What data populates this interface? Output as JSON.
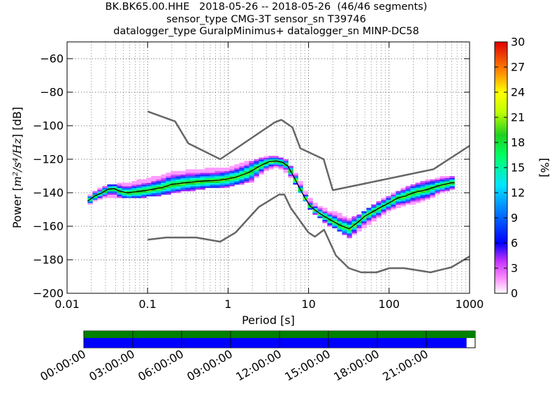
{
  "title_lines": [
    "BK.BK65.00.HHE   2018-05-26 -- 2018-05-26  (46/46 segments)",
    "sensor_type CMG-3T sensor_sn T39746",
    "datalogger_type GuralpMinimus+ datalogger_sn MINP-DC58"
  ],
  "chart_data": {
    "type": "heatmap",
    "xlabel": "Period [s]",
    "ylabel_prefix": "Power [",
    "ylabel_unit": "m²/s⁴/Hz",
    "ylabel_suffix": "] [dB]",
    "x_scale": "log",
    "xlim": [
      0.01,
      1000
    ],
    "ylim": [
      -200,
      -50
    ],
    "x_ticks": [
      0.01,
      0.1,
      1,
      10,
      100,
      1000
    ],
    "x_tick_labels": [
      "0.01",
      "0.1",
      "1",
      "10",
      "100",
      "1000"
    ],
    "y_ticks": [
      -200,
      -180,
      -160,
      -140,
      -120,
      -100,
      -80,
      -60
    ],
    "y_tick_labels": [
      "−200",
      "−180",
      "−160",
      "−140",
      "−120",
      "−100",
      "−80",
      "−60"
    ],
    "grid": true,
    "colorbar": {
      "label": "[%]",
      "range": [
        0,
        30
      ],
      "ticks": [
        0,
        3,
        6,
        9,
        12,
        15,
        18,
        21,
        24,
        27,
        30
      ],
      "tick_labels": [
        "0",
        "3",
        "6",
        "9",
        "12",
        "15",
        "18",
        "21",
        "24",
        "27",
        "30"
      ],
      "colormap": "pqlx"
    },
    "noise_models": [
      {
        "name": "NHNM",
        "color": "#666666",
        "points": [
          [
            0.1,
            -91.5
          ],
          [
            0.22,
            -97.4
          ],
          [
            0.32,
            -110.5
          ],
          [
            0.8,
            -120
          ],
          [
            3.8,
            -98
          ],
          [
            4.6,
            -96.5
          ],
          [
            6.3,
            -101
          ],
          [
            7.9,
            -113.5
          ],
          [
            15.4,
            -120
          ],
          [
            20,
            -138.5
          ],
          [
            354.8,
            -126
          ],
          [
            1000,
            -112
          ]
        ]
      },
      {
        "name": "NLNM",
        "color": "#666666",
        "points": [
          [
            0.1,
            -168
          ],
          [
            0.17,
            -166.7
          ],
          [
            0.4,
            -166.7
          ],
          [
            0.8,
            -169.2
          ],
          [
            1.24,
            -163.7
          ],
          [
            2.4,
            -148.6
          ],
          [
            4.3,
            -141.1
          ],
          [
            5,
            -141.1
          ],
          [
            6,
            -149
          ],
          [
            10,
            -163.8
          ],
          [
            12,
            -166.2
          ],
          [
            15.6,
            -162.1
          ],
          [
            21.9,
            -177.5
          ],
          [
            31.6,
            -185
          ],
          [
            45,
            -187.5
          ],
          [
            70,
            -187.5
          ],
          [
            101,
            -185
          ],
          [
            154,
            -185
          ],
          [
            328,
            -187.5
          ],
          [
            600,
            -184.4
          ],
          [
            1000,
            -178
          ]
        ]
      }
    ],
    "psd_median": {
      "color": "#000000",
      "points": [
        [
          0.018,
          -145
        ],
        [
          0.022,
          -142
        ],
        [
          0.026,
          -140.5
        ],
        [
          0.032,
          -138
        ],
        [
          0.038,
          -137.5
        ],
        [
          0.045,
          -139
        ],
        [
          0.055,
          -140
        ],
        [
          0.07,
          -139.5
        ],
        [
          0.1,
          -138.5
        ],
        [
          0.15,
          -137
        ],
        [
          0.2,
          -135
        ],
        [
          0.3,
          -134
        ],
        [
          0.5,
          -133
        ],
        [
          0.8,
          -132.5
        ],
        [
          1.2,
          -131
        ],
        [
          1.8,
          -128
        ],
        [
          2.5,
          -124
        ],
        [
          3.2,
          -121.5
        ],
        [
          4,
          -121
        ],
        [
          4.8,
          -122
        ],
        [
          5.5,
          -124
        ],
        [
          6.5,
          -130
        ],
        [
          7.5,
          -136
        ],
        [
          9,
          -143
        ],
        [
          10.5,
          -148
        ],
        [
          12.5,
          -151
        ],
        [
          15,
          -153.5
        ],
        [
          20,
          -157
        ],
        [
          25,
          -159.5
        ],
        [
          32,
          -161.5
        ],
        [
          40,
          -158
        ],
        [
          50,
          -154
        ],
        [
          70,
          -150
        ],
        [
          100,
          -146
        ],
        [
          130,
          -143
        ],
        [
          160,
          -142
        ],
        [
          200,
          -140
        ],
        [
          300,
          -138
        ],
        [
          400,
          -136
        ],
        [
          600,
          -134
        ],
        [
          650,
          -134
        ]
      ]
    },
    "psd_spread": {
      "comment_free": true,
      "upper": [
        [
          0.018,
          -142
        ],
        [
          0.03,
          -136
        ],
        [
          0.06,
          -134
        ],
        [
          0.1,
          -132
        ],
        [
          0.2,
          -128
        ],
        [
          0.5,
          -126
        ],
        [
          1,
          -125
        ],
        [
          2,
          -121
        ],
        [
          3,
          -118.5
        ],
        [
          4,
          -118
        ],
        [
          5,
          -120
        ],
        [
          6.5,
          -126
        ],
        [
          8,
          -134
        ],
        [
          10,
          -143
        ],
        [
          13,
          -148
        ],
        [
          18,
          -151
        ],
        [
          25,
          -153
        ],
        [
          32,
          -156
        ],
        [
          45,
          -153
        ],
        [
          70,
          -146
        ],
        [
          100,
          -142
        ],
        [
          200,
          -135
        ],
        [
          300,
          -133
        ],
        [
          400,
          -131
        ],
        [
          600,
          -130
        ],
        [
          650,
          -130
        ]
      ],
      "lower": [
        [
          0.018,
          -147
        ],
        [
          0.03,
          -142
        ],
        [
          0.06,
          -143
        ],
        [
          0.1,
          -142
        ],
        [
          0.2,
          -140
        ],
        [
          0.5,
          -137
        ],
        [
          1,
          -136
        ],
        [
          2,
          -133
        ],
        [
          3,
          -126
        ],
        [
          4,
          -124
        ],
        [
          5,
          -126
        ],
        [
          6.5,
          -133
        ],
        [
          8,
          -140
        ],
        [
          10,
          -148
        ],
        [
          13,
          -154
        ],
        [
          18,
          -159
        ],
        [
          25,
          -163
        ],
        [
          32,
          -167
        ],
        [
          45,
          -162
        ],
        [
          70,
          -155
        ],
        [
          100,
          -150
        ],
        [
          200,
          -146
        ],
        [
          300,
          -144
        ],
        [
          400,
          -140
        ],
        [
          600,
          -138
        ],
        [
          650,
          -138
        ]
      ]
    }
  },
  "time_axis": {
    "tick_labels": [
      "00:00:00",
      "03:00:00",
      "06:00:00",
      "09:00:00",
      "12:00:00",
      "15:00:00",
      "18:00:00",
      "21:00:00"
    ],
    "data_coverage_fraction": 1.0,
    "gap_coverage_fraction": 0.978,
    "data_color": "#008000",
    "gap_color": "#0000ff"
  }
}
